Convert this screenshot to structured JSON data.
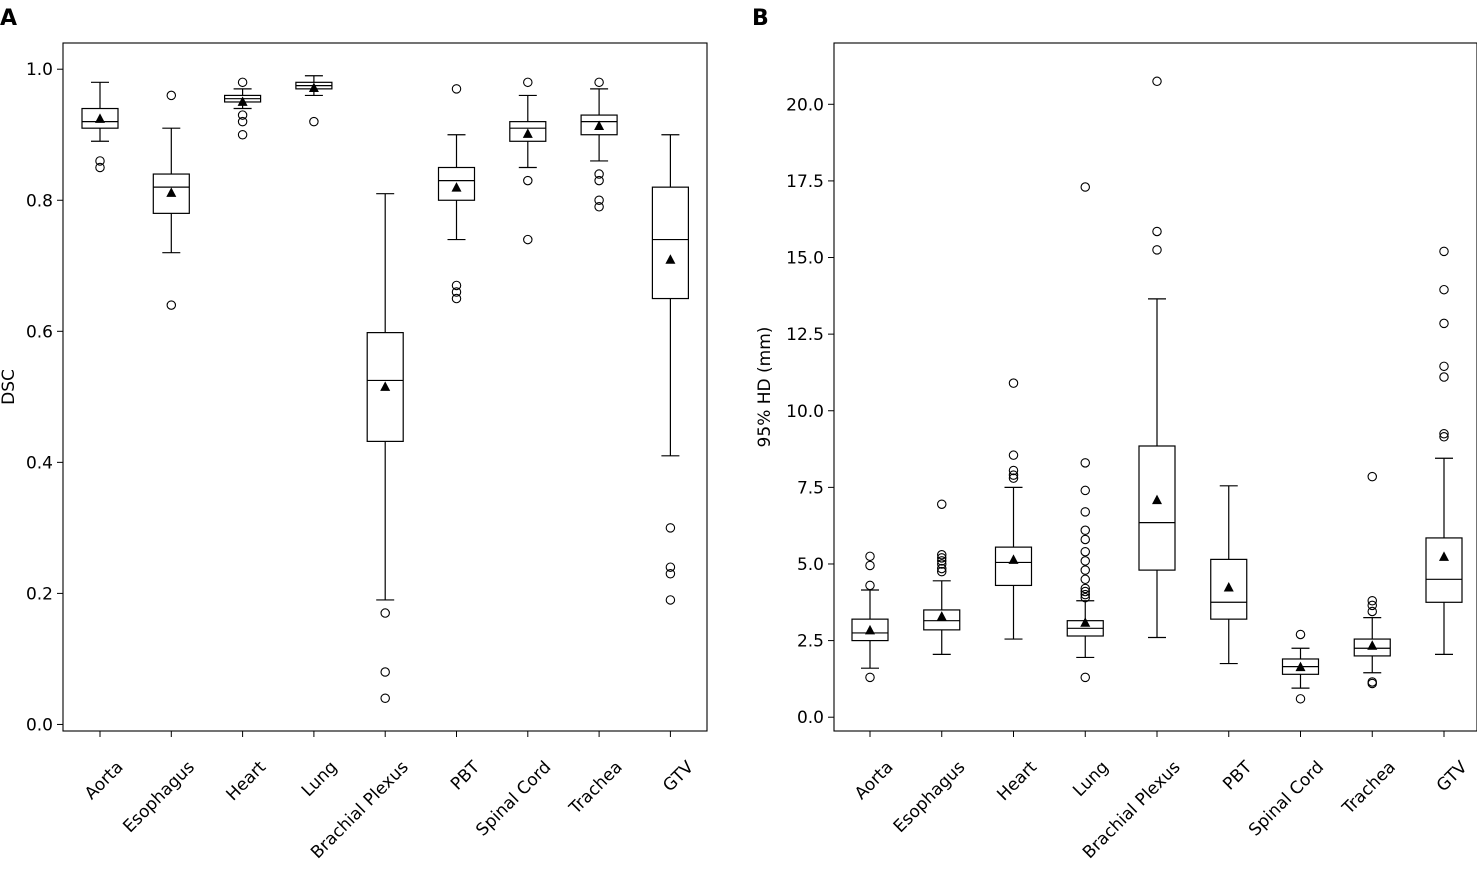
{
  "figure": {
    "panels": [
      "A",
      "B"
    ]
  },
  "chart_data": [
    {
      "type": "box",
      "panel": "A",
      "title": "",
      "xlabel": "",
      "ylabel": "DSC",
      "ylim": [
        -0.01,
        1.04
      ],
      "yticks": [
        0.0,
        0.2,
        0.4,
        0.6,
        0.8,
        1.0
      ],
      "ytick_labels": [
        "0.0",
        "0.2",
        "0.4",
        "0.6",
        "0.8",
        "1.0"
      ],
      "grid": false,
      "categories": [
        "Aorta",
        "Esophagus",
        "Heart",
        "Lung",
        "Brachial Plexus",
        "PBT",
        "Spinal Cord",
        "Trachea",
        "GTV"
      ],
      "boxes": [
        {
          "whislo": 0.89,
          "q1": 0.91,
          "med": 0.92,
          "q3": 0.94,
          "whishi": 0.98,
          "mean": 0.925,
          "fliers": [
            0.86,
            0.85
          ]
        },
        {
          "whislo": 0.72,
          "q1": 0.78,
          "med": 0.82,
          "q3": 0.84,
          "whishi": 0.91,
          "mean": 0.812,
          "fliers": [
            0.96,
            0.64
          ]
        },
        {
          "whislo": 0.94,
          "q1": 0.95,
          "med": 0.955,
          "q3": 0.96,
          "whishi": 0.97,
          "mean": 0.951,
          "fliers": [
            0.98,
            0.93,
            0.92,
            0.9
          ]
        },
        {
          "whislo": 0.96,
          "q1": 0.97,
          "med": 0.975,
          "q3": 0.98,
          "whishi": 0.99,
          "mean": 0.972,
          "fliers": [
            0.92
          ]
        },
        {
          "whislo": 0.19,
          "q1": 0.432,
          "med": 0.525,
          "q3": 0.598,
          "whishi": 0.81,
          "mean": 0.516,
          "fliers": [
            0.17,
            0.08,
            0.04
          ]
        },
        {
          "whislo": 0.74,
          "q1": 0.8,
          "med": 0.83,
          "q3": 0.85,
          "whishi": 0.9,
          "mean": 0.82,
          "fliers": [
            0.97,
            0.67,
            0.66,
            0.65
          ]
        },
        {
          "whislo": 0.85,
          "q1": 0.89,
          "med": 0.91,
          "q3": 0.92,
          "whishi": 0.96,
          "mean": 0.902,
          "fliers": [
            0.98,
            0.83,
            0.74
          ]
        },
        {
          "whislo": 0.86,
          "q1": 0.9,
          "med": 0.92,
          "q3": 0.93,
          "whishi": 0.97,
          "mean": 0.914,
          "fliers": [
            0.98,
            0.84,
            0.83,
            0.8,
            0.79
          ]
        },
        {
          "whislo": 0.41,
          "q1": 0.65,
          "med": 0.74,
          "q3": 0.82,
          "whishi": 0.9,
          "mean": 0.71,
          "fliers": [
            0.3,
            0.24,
            0.23,
            0.19
          ]
        }
      ]
    },
    {
      "type": "box",
      "panel": "B",
      "title": "",
      "xlabel": "",
      "ylabel": "95% HD (mm)",
      "ylim": [
        -0.45,
        22.0
      ],
      "yticks": [
        0.0,
        2.5,
        5.0,
        7.5,
        10.0,
        12.5,
        15.0,
        17.5,
        20.0
      ],
      "ytick_labels": [
        "0.0",
        "2.5",
        "5.0",
        "7.5",
        "10.0",
        "12.5",
        "15.0",
        "17.5",
        "20.0"
      ],
      "grid": false,
      "categories": [
        "Aorta",
        "Esophagus",
        "Heart",
        "Lung",
        "Brachial Plexus",
        "PBT",
        "Spinal Cord",
        "Trachea",
        "GTV"
      ],
      "boxes": [
        {
          "whislo": 1.6,
          "q1": 2.5,
          "med": 2.75,
          "q3": 3.2,
          "whishi": 4.15,
          "mean": 2.85,
          "fliers": [
            1.3,
            4.3,
            4.95,
            5.25
          ]
        },
        {
          "whislo": 2.05,
          "q1": 2.85,
          "med": 3.15,
          "q3": 3.5,
          "whishi": 4.45,
          "mean": 3.3,
          "fliers": [
            4.75,
            4.85,
            5.0,
            5.1,
            5.2,
            5.3,
            6.95
          ]
        },
        {
          "whislo": 2.55,
          "q1": 4.3,
          "med": 5.05,
          "q3": 5.55,
          "whishi": 7.5,
          "mean": 5.15,
          "fliers": [
            7.8,
            7.9,
            8.05,
            8.55,
            10.9
          ]
        },
        {
          "whislo": 1.95,
          "q1": 2.65,
          "med": 2.9,
          "q3": 3.15,
          "whishi": 3.8,
          "mean": 3.1,
          "fliers": [
            1.3,
            3.9,
            4.0,
            4.1,
            4.2,
            4.5,
            4.8,
            5.1,
            5.4,
            5.8,
            6.1,
            6.7,
            7.4,
            8.3,
            17.3
          ]
        },
        {
          "whislo": 2.6,
          "q1": 4.8,
          "med": 6.35,
          "q3": 8.85,
          "whishi": 13.65,
          "mean": 7.1,
          "fliers": [
            15.25,
            15.85,
            20.75
          ]
        },
        {
          "whislo": 1.75,
          "q1": 3.2,
          "med": 3.75,
          "q3": 5.15,
          "whishi": 7.55,
          "mean": 4.25,
          "fliers": []
        },
        {
          "whislo": 0.95,
          "q1": 1.4,
          "med": 1.65,
          "q3": 1.9,
          "whishi": 2.25,
          "mean": 1.65,
          "fliers": [
            0.6,
            2.7
          ]
        },
        {
          "whislo": 1.45,
          "q1": 2.0,
          "med": 2.25,
          "q3": 2.55,
          "whishi": 3.25,
          "mean": 2.35,
          "fliers": [
            1.1,
            1.15,
            3.45,
            3.65,
            3.8,
            7.85
          ]
        },
        {
          "whislo": 2.05,
          "q1": 3.75,
          "med": 4.5,
          "q3": 5.85,
          "whishi": 8.45,
          "mean": 5.25,
          "fliers": [
            9.15,
            9.25,
            11.1,
            11.45,
            12.85,
            13.95,
            15.2
          ]
        }
      ]
    }
  ]
}
